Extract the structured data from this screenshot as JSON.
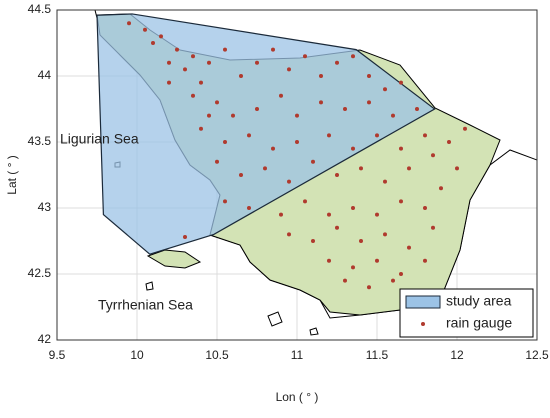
{
  "chart_data": {
    "type": "map",
    "x_label": "Lon ( ° )",
    "y_label": "Lat ( ° )",
    "annotations": [
      "Ligurian Sea",
      "Tyrrhenian Sea"
    ],
    "xlim": [
      9.5,
      12.5
    ],
    "ylim": [
      42,
      44.5
    ],
    "xticks": [
      9.5,
      10,
      10.5,
      11,
      11.5,
      12,
      12.5
    ],
    "yticks": [
      42,
      42.5,
      43,
      43.5,
      44,
      44.5
    ],
    "grid": true,
    "legend": "southeast",
    "series": [
      {
        "name": "study area",
        "kind": "polygon",
        "color": "#9cc3e6",
        "x": [
          9.75,
          9.97,
          11.37,
          11.86,
          10.48,
          10.08,
          9.79
        ],
        "y": [
          44.46,
          44.47,
          44.2,
          43.75,
          42.8,
          42.65,
          42.95
        ]
      },
      {
        "name": "rain gauge",
        "kind": "points",
        "color": "#b03a2e",
        "x": [
          9.95,
          10.05,
          10.15,
          10.25,
          10.35,
          10.1,
          10.3,
          10.45,
          10.55,
          10.65,
          10.75,
          10.85,
          10.95,
          11.05,
          11.15,
          11.25,
          11.35,
          11.45,
          11.55,
          11.65,
          10.2,
          10.4,
          10.35,
          10.5,
          10.6,
          10.75,
          10.9,
          11.0,
          11.15,
          11.3,
          11.45,
          11.6,
          11.75,
          10.4,
          10.55,
          10.7,
          10.85,
          11.0,
          11.2,
          11.35,
          11.5,
          11.65,
          11.8,
          10.5,
          10.65,
          10.8,
          10.95,
          11.1,
          11.25,
          11.4,
          11.55,
          11.7,
          11.85,
          11.95,
          12.05,
          10.55,
          10.7,
          10.9,
          11.05,
          11.2,
          11.35,
          11.5,
          11.65,
          11.8,
          11.9,
          12.0,
          10.95,
          11.1,
          11.25,
          11.4,
          11.55,
          11.7,
          11.85,
          11.2,
          11.35,
          11.5,
          11.65,
          11.8,
          11.45,
          11.6,
          11.3,
          10.3,
          10.2,
          10.45
        ],
        "y": [
          44.4,
          44.35,
          44.3,
          44.2,
          44.15,
          44.25,
          44.05,
          44.1,
          44.2,
          44.0,
          44.1,
          44.2,
          44.05,
          44.15,
          44.0,
          44.1,
          44.15,
          44.0,
          43.9,
          43.95,
          44.1,
          43.95,
          43.85,
          43.8,
          43.7,
          43.75,
          43.85,
          43.7,
          43.8,
          43.75,
          43.8,
          43.7,
          43.75,
          43.6,
          43.5,
          43.55,
          43.45,
          43.5,
          43.55,
          43.45,
          43.55,
          43.45,
          43.55,
          43.35,
          43.25,
          43.3,
          43.2,
          43.35,
          43.25,
          43.3,
          43.2,
          43.3,
          43.4,
          43.5,
          43.6,
          43.05,
          43.0,
          42.95,
          43.05,
          42.95,
          43.0,
          42.95,
          43.05,
          43.0,
          43.15,
          43.3,
          42.8,
          42.75,
          42.85,
          42.75,
          42.8,
          42.7,
          42.85,
          42.6,
          42.55,
          42.6,
          42.5,
          42.6,
          42.4,
          42.45,
          42.45,
          42.78,
          43.95,
          43.7
        ]
      }
    ]
  }
}
